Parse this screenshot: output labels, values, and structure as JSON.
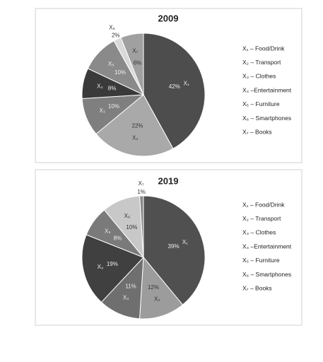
{
  "chart_data": [
    {
      "type": "pie",
      "title": "2009",
      "categories": [
        "X₁",
        "X₂",
        "X₃",
        "X₄",
        "X₅",
        "X₆",
        "X₇"
      ],
      "values": [
        42,
        22,
        10,
        8,
        10,
        2,
        6
      ],
      "value_labels": [
        "42%",
        "22%",
        "10%",
        "8%",
        "10%",
        "2%",
        "6%"
      ],
      "colors": [
        "#4d4d4d",
        "#a9a9a9",
        "#7f7f7f",
        "#3a3a3a",
        "#8a8a8a",
        "#d9d9d9",
        "#a0a0a0"
      ],
      "legend": [
        "X₁ – Food/Drink",
        "X₂ – Transport",
        "X₃ – Clothes",
        "X₄ –Entertainment",
        "X₅ – Furniture",
        "X₆ – Smartphones",
        "X₇ – Books"
      ]
    },
    {
      "type": "pie",
      "title": "2019",
      "categories": [
        "X₁",
        "X₂",
        "X₃",
        "X₄",
        "X₅",
        "X₆",
        "X₇"
      ],
      "values": [
        39,
        12,
        11,
        19,
        8,
        10,
        1
      ],
      "value_labels": [
        "39%",
        "12%",
        "11%",
        "19%",
        "8%",
        "10%",
        "1%"
      ],
      "colors": [
        "#505050",
        "#9c9c9c",
        "#6f6f6f",
        "#404040",
        "#7a7a7a",
        "#c8c8c8",
        "#8a8a8a"
      ],
      "legend": [
        "X₁ – Food/Drink",
        "X₂ – Transport",
        "X₃ – Clothes",
        "X₄ –Entertainment",
        "X₅ – Furniture",
        "X₆ – Smartphones",
        "X₇ – Books"
      ]
    }
  ]
}
